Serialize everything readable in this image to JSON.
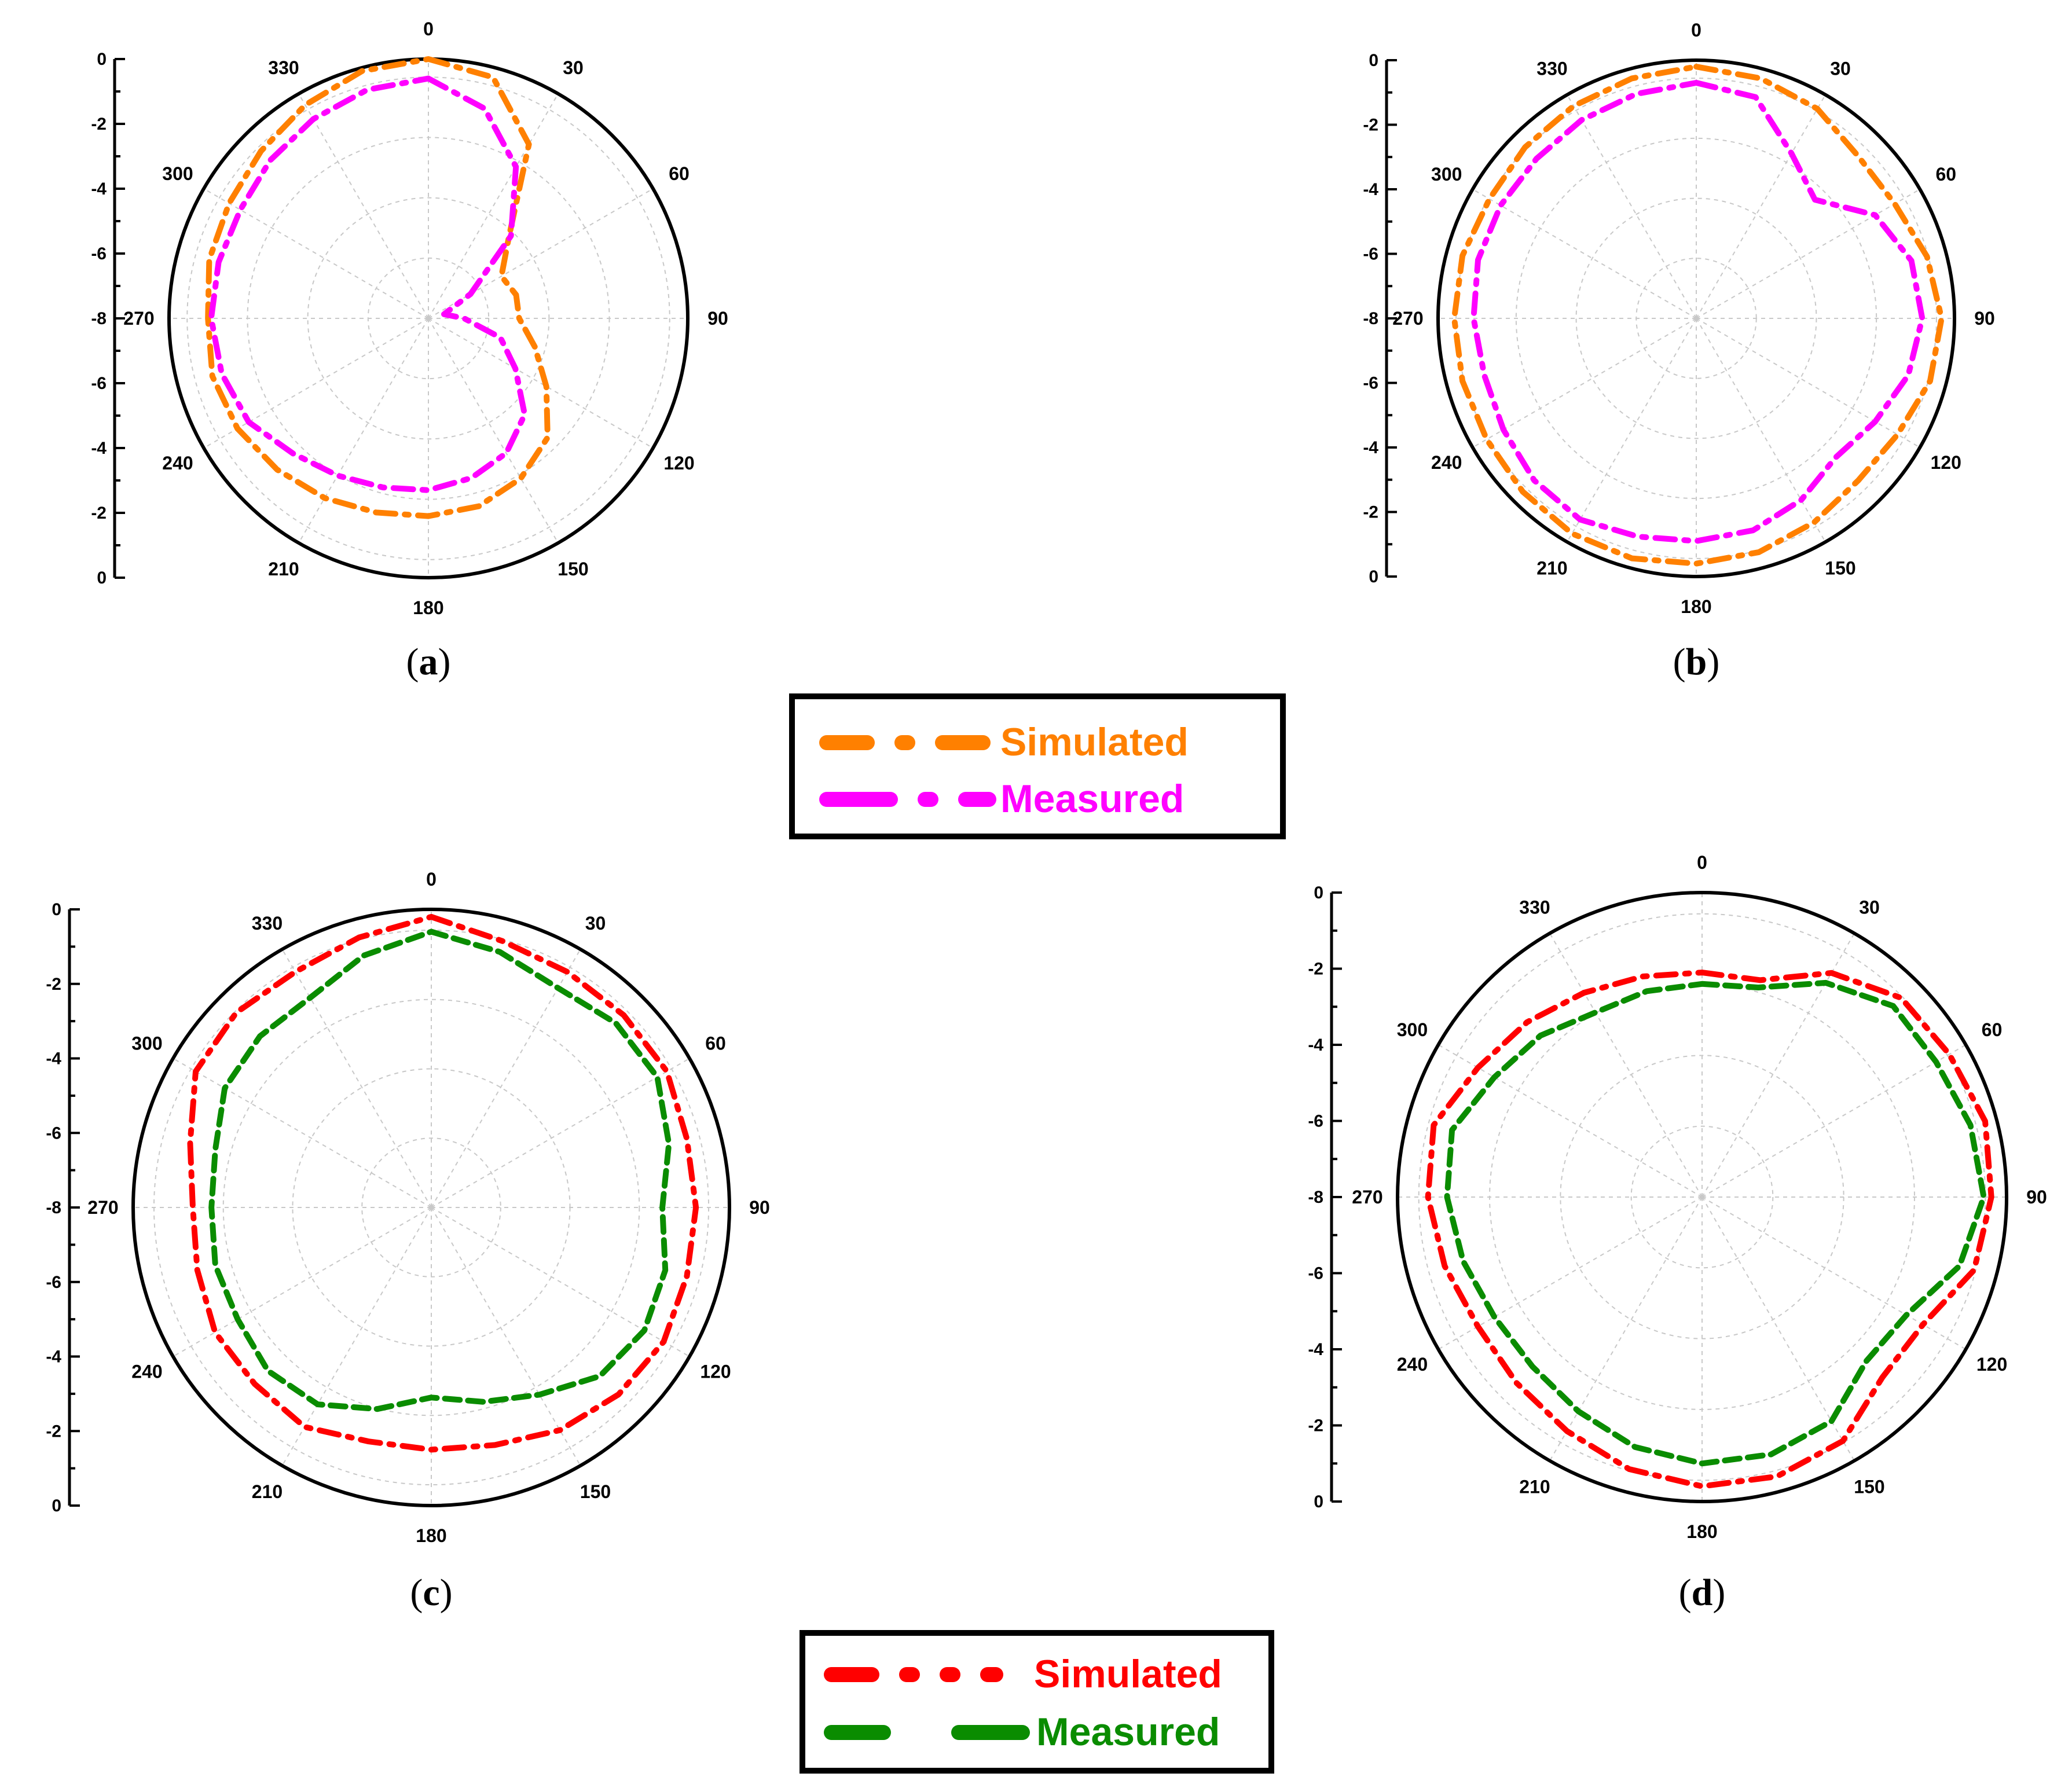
{
  "chart_data": [
    {
      "type": "polar-line",
      "panel": "a",
      "caption": "a",
      "radial_ticks_left": [
        "0",
        "-2",
        "-4",
        "-6",
        "-8"
      ],
      "radial_ticks_right": [
        "-8",
        "-6",
        "-4",
        "-2",
        "0"
      ],
      "angle_labels": [
        "0",
        "30",
        "60",
        "90",
        "120",
        "150",
        "180",
        "210",
        "240",
        "270",
        "300",
        "330"
      ],
      "rlim": [
        -8,
        0
      ],
      "grid": true,
      "angles": [
        0,
        15,
        30,
        45,
        60,
        75,
        90,
        105,
        120,
        135,
        150,
        165,
        180,
        195,
        210,
        225,
        240,
        255,
        270,
        285,
        300,
        315,
        330,
        345
      ],
      "series": [
        {
          "name": "Simulated",
          "color": "#FF8000",
          "dash": "dash-dot",
          "values": [
            0,
            -0.3,
            -1.8,
            -4.5,
            -5.4,
            -5.2,
            -5.2,
            -4.6,
            -3.8,
            -2.8,
            -2.3,
            -2.0,
            -1.9,
            -1.8,
            -1.6,
            -1.4,
            -1.2,
            -1.1,
            -1.2,
            -1.0,
            -0.9,
            -0.7,
            -0.4,
            -0.1
          ]
        },
        {
          "name": "Measured",
          "color": "#FF00FF",
          "dash": "dash-dot",
          "values": [
            -0.6,
            -1.3,
            -2.6,
            -4.4,
            -6.5,
            -7.5,
            -6.9,
            -5.7,
            -4.9,
            -3.8,
            -3.2,
            -2.9,
            -2.7,
            -2.6,
            -2.4,
            -2.1,
            -1.6,
            -1.4,
            -1.3,
            -1.3,
            -1.3,
            -1.1,
            -0.9,
            -0.7
          ]
        }
      ]
    },
    {
      "type": "polar-line",
      "panel": "b",
      "caption": "b",
      "radial_ticks_left": [
        "0",
        "-2",
        "-4",
        "-6",
        "-8"
      ],
      "radial_ticks_right": [
        "-8",
        "-6",
        "-4",
        "-2",
        "0"
      ],
      "angle_labels": [
        "0",
        "30",
        "60",
        "90",
        "120",
        "150",
        "180",
        "210",
        "240",
        "270",
        "300",
        "330"
      ],
      "rlim": [
        -8,
        0
      ],
      "grid": true,
      "angles": [
        0,
        15,
        30,
        45,
        60,
        75,
        90,
        105,
        120,
        135,
        150,
        165,
        180,
        195,
        210,
        225,
        240,
        255,
        270,
        285,
        300,
        315,
        330,
        345
      ],
      "series": [
        {
          "name": "Simulated",
          "color": "#FF8000",
          "dash": "dash-dot",
          "values": [
            -0.2,
            -0.3,
            -0.5,
            -0.9,
            -0.9,
            -0.6,
            -0.4,
            -0.5,
            -0.8,
            -0.9,
            -0.7,
            -0.5,
            -0.4,
            -0.3,
            -0.3,
            -0.4,
            -0.5,
            -0.5,
            -0.5,
            -0.5,
            -0.6,
            -0.5,
            -0.4,
            -0.3
          ]
        },
        {
          "name": "Measured",
          "color": "#FF00FF",
          "dash": "dash-dot",
          "values": [
            -0.7,
            -0.9,
            -2.1,
            -2.8,
            -1.6,
            -1.1,
            -1.0,
            -1.2,
            -1.6,
            -1.9,
            -1.5,
            -1.2,
            -1.1,
            -1.0,
            -0.8,
            -0.9,
            -1.1,
            -1.2,
            -1.1,
            -1.0,
            -1.0,
            -1.0,
            -0.9,
            -0.8
          ]
        }
      ]
    },
    {
      "type": "polar-line",
      "panel": "c",
      "caption": "c",
      "radial_ticks_left": [
        "0",
        "-2",
        "-4",
        "-6",
        "-8"
      ],
      "radial_ticks_right": [
        "-8",
        "-6",
        "-4",
        "-2",
        "0"
      ],
      "angle_labels": [
        "0",
        "30",
        "60",
        "90",
        "120",
        "150",
        "180",
        "210",
        "240",
        "270",
        "300",
        "330"
      ],
      "rlim": [
        -8,
        0
      ],
      "grid": true,
      "angles": [
        0,
        15,
        30,
        45,
        60,
        75,
        90,
        105,
        120,
        135,
        150,
        165,
        180,
        195,
        210,
        225,
        240,
        255,
        270,
        285,
        300,
        315,
        330,
        345
      ],
      "series": [
        {
          "name": "Simulated",
          "color": "#FF0000",
          "dash": "dash-dot",
          "values": [
            -0.2,
            -0.6,
            -0.7,
            -0.7,
            -0.7,
            -0.9,
            -0.9,
            -0.9,
            -0.8,
            -0.9,
            -1.1,
            -1.4,
            -1.5,
            -1.5,
            -1.2,
            -1.3,
            -1.3,
            -1.5,
            -1.6,
            -1.3,
            -0.7,
            -0.6,
            -0.7,
            -0.5
          ]
        },
        {
          "name": "Measured",
          "color": "#0A8C00",
          "dash": "dashed",
          "values": [
            -0.6,
            -0.9,
            -1.2,
            -1.0,
            -1.0,
            -1.4,
            -1.8,
            -1.5,
            -1.4,
            -1.6,
            -2.2,
            -2.6,
            -2.9,
            -2.4,
            -1.9,
            -1.8,
            -2.0,
            -2.0,
            -2.1,
            -2.0,
            -1.6,
            -1.5,
            -1.5,
            -1.0
          ]
        }
      ]
    },
    {
      "type": "polar-line",
      "panel": "d",
      "caption": "d",
      "radial_ticks_left": [
        "0",
        "-2",
        "-4",
        "-6",
        "-8"
      ],
      "radial_ticks_right": [
        "-8",
        "-6",
        "-4",
        "-2",
        "0"
      ],
      "angle_labels": [
        "0",
        "30",
        "60",
        "90",
        "120",
        "150",
        "180",
        "210",
        "240",
        "270",
        "300",
        "330"
      ],
      "rlim": [
        -8,
        0
      ],
      "grid": true,
      "angles": [
        0,
        15,
        30,
        45,
        60,
        75,
        90,
        105,
        120,
        135,
        150,
        165,
        180,
        195,
        210,
        225,
        240,
        255,
        270,
        285,
        300,
        315,
        330,
        345
      ],
      "series": [
        {
          "name": "Simulated",
          "color": "#FF0000",
          "dash": "dash-dot",
          "values": [
            -2.1,
            -2.1,
            -1.2,
            -0.6,
            -0.5,
            -0.3,
            -0.4,
            -0.6,
            -1.3,
            -1.3,
            -0.6,
            -0.4,
            -0.4,
            -0.6,
            -0.9,
            -1.1,
            -1.2,
            -1.0,
            -0.8,
            -0.7,
            -1.2,
            -1.5,
            -1.8,
            -2.0
          ]
        },
        {
          "name": "Measured",
          "color": "#0A8C00",
          "dash": "dashed",
          "values": [
            -2.4,
            -2.3,
            -1.5,
            -0.9,
            -0.9,
            -0.7,
            -0.6,
            -1.0,
            -1.8,
            -1.9,
            -1.2,
            -1.0,
            -1.0,
            -1.2,
            -1.5,
            -1.7,
            -1.7,
            -1.5,
            -1.3,
            -1.2,
            -1.7,
            -2.0,
            -2.4,
            -2.4
          ]
        }
      ]
    }
  ],
  "legends": [
    {
      "items": [
        {
          "label": "Simulated",
          "color": "#FF8000"
        },
        {
          "label": "Measured",
          "color": "#FF00FF"
        }
      ]
    },
    {
      "items": [
        {
          "label": "Simulated",
          "color": "#FF0000"
        },
        {
          "label": "Measured",
          "color": "#0A8C00"
        }
      ]
    }
  ]
}
